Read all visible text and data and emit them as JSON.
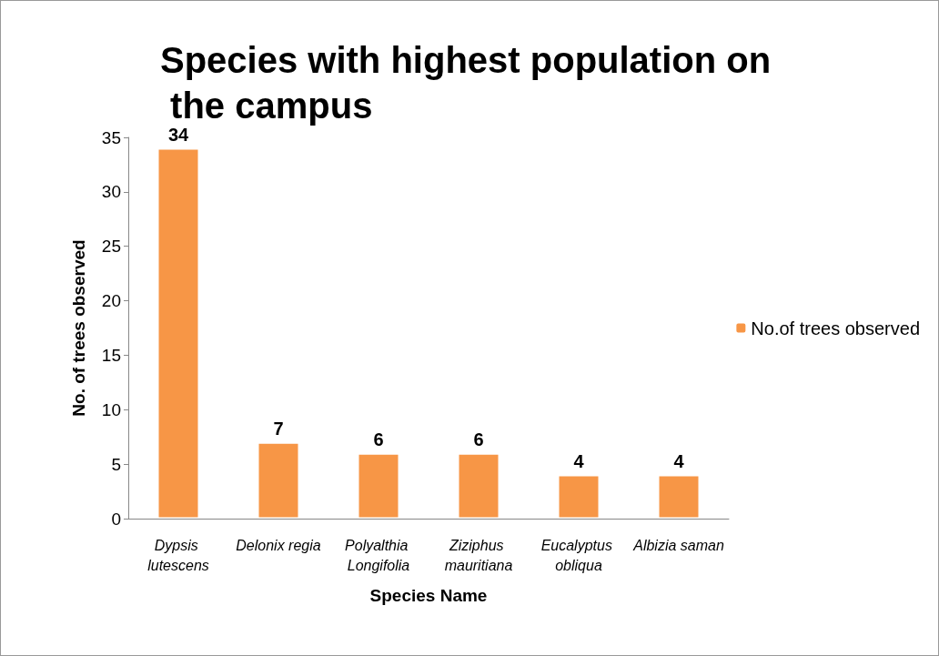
{
  "chart_data": {
    "type": "bar",
    "title": "Species with highest population on the campus",
    "xlabel": "Species Name",
    "ylabel": "No. of trees observed",
    "categories": [
      "Dypsis lutescens",
      "Delonix regia",
      "Polyalthia Longifolia",
      "Ziziphus mauritiana",
      "Eucalyptus obliqua",
      "Albizia saman"
    ],
    "series": [
      {
        "name": "No.of trees observed",
        "color": "#f79646",
        "values": [
          34,
          7,
          6,
          6,
          4,
          4
        ]
      }
    ],
    "ylim": [
      0,
      35
    ],
    "yticks": [
      0,
      5,
      10,
      15,
      20,
      25,
      30,
      35
    ],
    "data_labels": true,
    "legend": "right"
  }
}
